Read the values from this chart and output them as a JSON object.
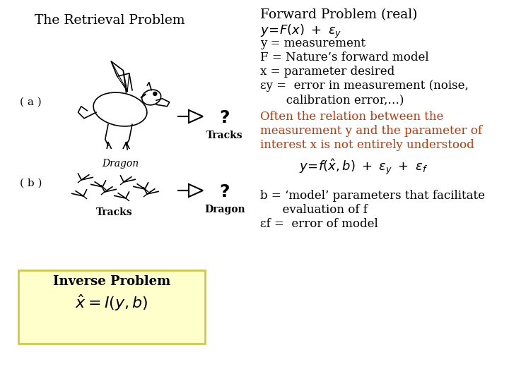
{
  "bg_color": "#ffffff",
  "title_left": "The Retrieval Problem",
  "title_right": "Forward Problem (real)",
  "right_line1": "y=F(x) + εy",
  "right_line2": "y = measurement",
  "right_line3": "F = Nature’s forward model",
  "right_line4": "x = parameter desired",
  "right_line5": "εy =  error in measurement (noise,",
  "right_line6": "       calibration error,…)",
  "orange_line1": "Often the relation between the",
  "orange_line2": "measurement y and the parameter of",
  "orange_line3": "interest x is not entirely understood",
  "orange_color": "#cc3300",
  "formula_mid": "y=f(ˆx,b) + εy + εf",
  "bot_line1": "b = ‘model’ parameters that facilitate",
  "bot_line2": "      evaluation of f",
  "bot_line3": "εf =  error of model",
  "inverse_box_color": "#ffffcc",
  "inverse_box_edge": "#cccc44",
  "inverse_title": "Inverse Problem",
  "label_a": "( a )",
  "label_b": "( b )",
  "tracks_a": "Tracks",
  "dragon_a": "Dragon",
  "tracks_b": "Tracks",
  "dragon_b": "Dragon"
}
